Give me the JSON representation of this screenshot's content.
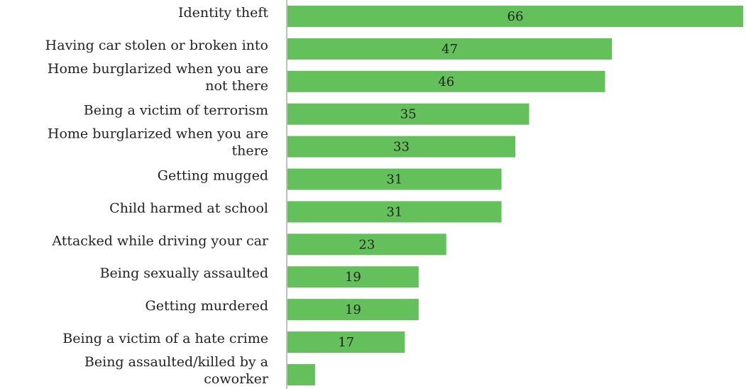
{
  "chart_data": {
    "type": "bar",
    "orientation": "horizontal",
    "categories": [
      [
        "Identity theft"
      ],
      [
        "Having car stolen or broken into"
      ],
      [
        "Home burglarized when you are",
        "not there"
      ],
      [
        "Being a victim of terrorism"
      ],
      [
        "Home burglarized when you are",
        "there"
      ],
      [
        "Getting mugged"
      ],
      [
        "Child harmed at school"
      ],
      [
        "Attacked while driving your car"
      ],
      [
        "Being sexually assaulted"
      ],
      [
        "Getting murdered"
      ],
      [
        "Being a victim of a hate crime"
      ],
      [
        "Being assaulted/killed by a",
        "coworker"
      ]
    ],
    "values": [
      66,
      47,
      46,
      35,
      33,
      31,
      31,
      23,
      19,
      19,
      17,
      4
    ],
    "value_labels": [
      "66",
      "47",
      "46",
      "35",
      "33",
      "31",
      "31",
      "23",
      "19",
      "19",
      "17",
      ""
    ],
    "xlim": [
      0,
      66
    ],
    "bar_color": "#63c05a",
    "axis_color": "#bfbfbf",
    "grid": false,
    "legend": "none"
  }
}
